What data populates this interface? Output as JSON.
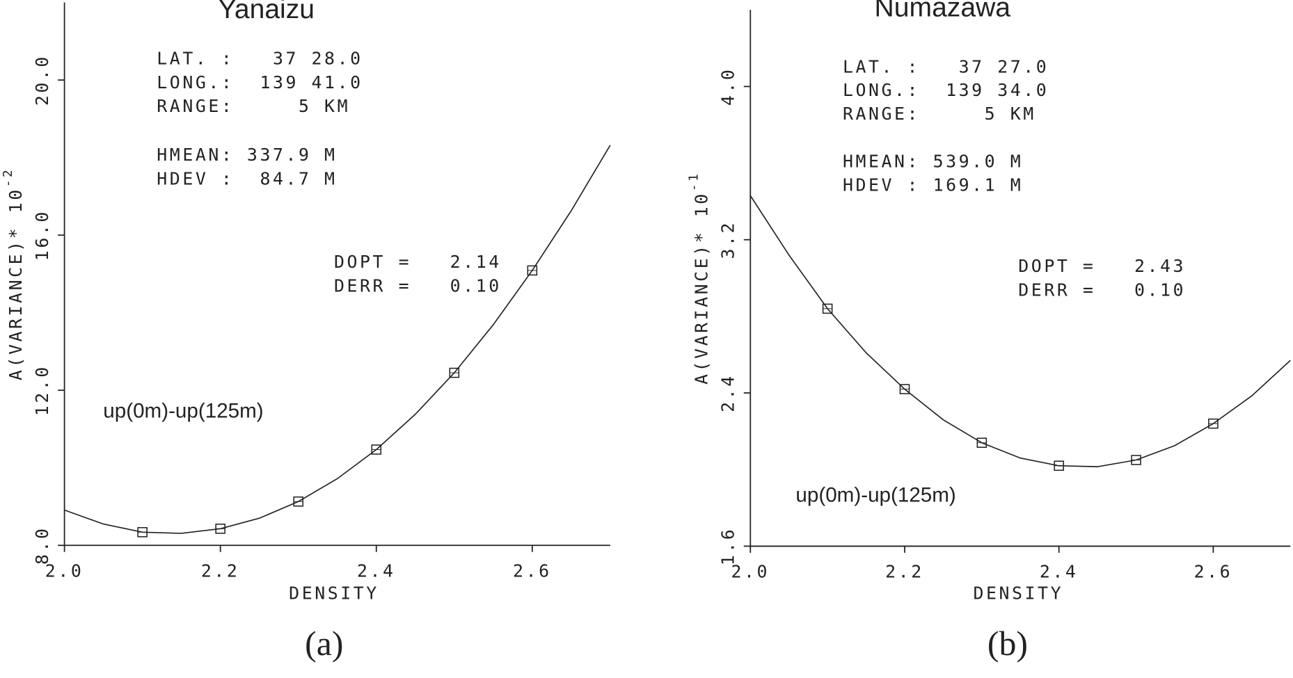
{
  "chart_data": [
    {
      "type": "line",
      "title": "Yanaizu",
      "info": [
        "LAT. :   37 28.0",
        "LONG.:  139 41.0",
        "RANGE:     5 KM",
        "HMEAN: 337.9 M",
        "HDEV :  84.7 M"
      ],
      "fit": [
        "DOPT =   2.14",
        "DERR =   0.10"
      ],
      "annotation": "up(0m)-up(125m)",
      "xlabel": "DENSITY",
      "ylabel": "A(VARIANCE)* 10",
      "ylabel_exponent": "-2",
      "caption": "(a)",
      "xlim": [
        2.0,
        2.7
      ],
      "ylim": [
        8.0,
        22.0
      ],
      "xticks": [
        {
          "value": 2.0,
          "label": "2.0"
        },
        {
          "value": 2.2,
          "label": "2.2"
        },
        {
          "value": 2.4,
          "label": "2.4"
        },
        {
          "value": 2.6,
          "label": "2.6"
        }
      ],
      "yticks": [
        {
          "value": 8.0,
          "label": "8.0"
        },
        {
          "value": 12.0,
          "label": "12.0"
        },
        {
          "value": 16.0,
          "label": "16.0"
        },
        {
          "value": 20.0,
          "label": "20.0"
        }
      ],
      "series": [
        {
          "kind": "line",
          "color": "#222222",
          "x": [
            2.0,
            2.05,
            2.1,
            2.15,
            2.2,
            2.25,
            2.3,
            2.35,
            2.4,
            2.45,
            2.5,
            2.55,
            2.6,
            2.65,
            2.7
          ],
          "values": [
            8.91,
            8.55,
            8.34,
            8.31,
            8.43,
            8.7,
            9.13,
            9.72,
            10.47,
            11.38,
            12.45,
            13.69,
            15.09,
            16.63,
            18.32
          ]
        },
        {
          "kind": "scatter",
          "marker": "square",
          "color": "#222222",
          "x": [
            2.1,
            2.2,
            2.3,
            2.4,
            2.5,
            2.6
          ],
          "values": [
            8.34,
            8.43,
            9.13,
            10.47,
            12.45,
            15.09
          ]
        }
      ]
    },
    {
      "type": "line",
      "title": "Numazawa",
      "info": [
        "LAT. :   37 27.0",
        "LONG.:  139 34.0",
        "RANGE:     5 KM",
        "HMEAN: 539.0 M",
        "HDEV : 169.1 M"
      ],
      "fit": [
        "DOPT =   2.43",
        "DERR =   0.10"
      ],
      "annotation": "up(0m)-up(125m)",
      "xlabel": "DENSITY",
      "ylabel": "A(VARIANCE)* 10",
      "ylabel_exponent": "-1",
      "caption": "(b)",
      "xlim": [
        2.0,
        2.7
      ],
      "ylim": [
        1.6,
        4.4
      ],
      "xticks": [
        {
          "value": 2.0,
          "label": "2.0"
        },
        {
          "value": 2.2,
          "label": "2.2"
        },
        {
          "value": 2.4,
          "label": "2.4"
        },
        {
          "value": 2.6,
          "label": "2.6"
        }
      ],
      "yticks": [
        1.6,
        2.4,
        3.2,
        {
          "value": 4.0,
          "label": "4.0"
        }
      ],
      "series": [
        {
          "kind": "line",
          "color": "#222222",
          "x": [
            2.0,
            2.05,
            2.1,
            2.15,
            2.2,
            2.25,
            2.3,
            2.35,
            2.4,
            2.45,
            2.5,
            2.55,
            2.6,
            2.65,
            2.7
          ],
          "values": [
            3.43,
            3.12,
            2.84,
            2.61,
            2.42,
            2.26,
            2.14,
            2.06,
            2.02,
            2.015,
            2.05,
            2.125,
            2.24,
            2.385,
            2.57
          ]
        },
        {
          "kind": "scatter",
          "marker": "square",
          "color": "#222222",
          "x": [
            2.1,
            2.2,
            2.3,
            2.4,
            2.5,
            2.6
          ],
          "values": [
            2.84,
            2.42,
            2.14,
            2.02,
            2.05,
            2.24
          ]
        }
      ]
    }
  ]
}
